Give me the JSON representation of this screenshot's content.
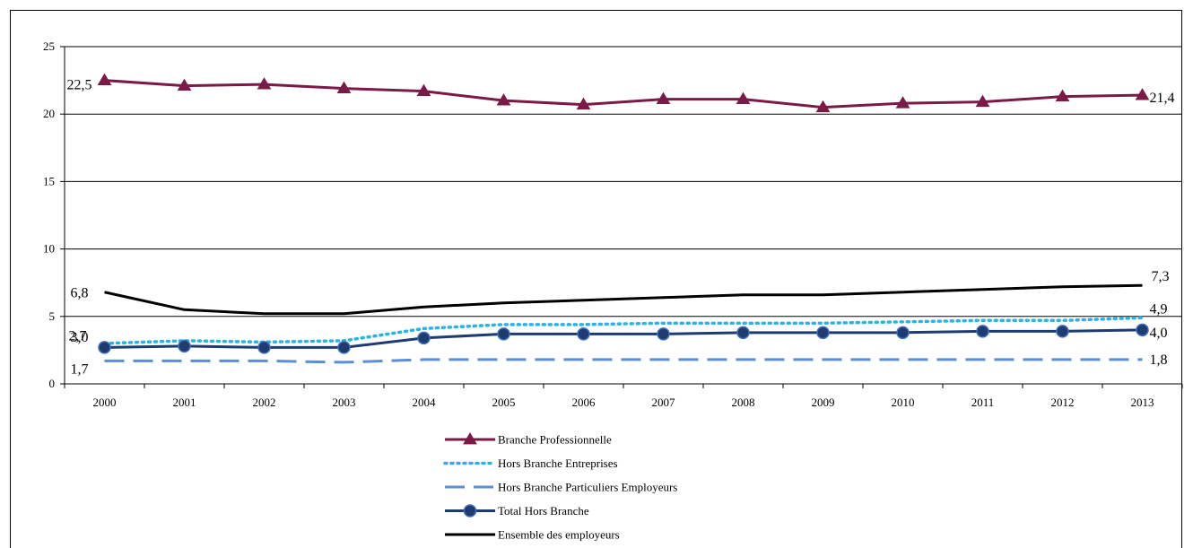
{
  "chart_data": {
    "type": "line",
    "x": [
      2000,
      2001,
      2002,
      2003,
      2004,
      2005,
      2006,
      2007,
      2008,
      2009,
      2010,
      2011,
      2012,
      2013
    ],
    "ylim": [
      0,
      25
    ],
    "yticks": [
      0,
      5,
      10,
      15,
      20,
      25
    ],
    "grid": true,
    "legend_position": "bottom",
    "series": [
      {
        "name": "Branche Professionnelle",
        "color": "#7b1a47",
        "style": "solid",
        "marker": "triangle",
        "values": [
          22.5,
          22.1,
          22.2,
          21.9,
          21.7,
          21.0,
          20.7,
          21.1,
          21.1,
          20.5,
          20.8,
          20.9,
          21.3,
          21.4
        ],
        "labels": {
          "start": "22,5",
          "end": "21,4"
        }
      },
      {
        "name": "Hors Branche Entreprises",
        "color": "#2ab4e6",
        "style": "dotted",
        "marker": "none",
        "values": [
          3.0,
          3.2,
          3.1,
          3.2,
          4.1,
          4.4,
          4.4,
          4.5,
          4.5,
          4.5,
          4.6,
          4.7,
          4.7,
          4.9
        ],
        "labels": {
          "start": "3,0",
          "end": "4,9"
        }
      },
      {
        "name": "Hors Branche Particuliers Employeurs",
        "color": "#5b8ed6",
        "style": "dashed",
        "marker": "none",
        "values": [
          1.7,
          1.7,
          1.7,
          1.6,
          1.8,
          1.8,
          1.8,
          1.8,
          1.8,
          1.8,
          1.8,
          1.8,
          1.8,
          1.8
        ],
        "labels": {
          "start": "1,7",
          "end": "1,8"
        }
      },
      {
        "name": "Total Hors Branche",
        "color": "#1f3b70",
        "style": "solid",
        "marker": "circle",
        "values": [
          2.7,
          2.8,
          2.7,
          2.7,
          3.4,
          3.7,
          3.7,
          3.7,
          3.8,
          3.8,
          3.8,
          3.9,
          3.9,
          4.0
        ],
        "labels": {
          "start": "2,7",
          "end": "4,0"
        }
      },
      {
        "name": "Ensemble des employeurs",
        "color": "#000000",
        "style": "solid",
        "marker": "none",
        "values": [
          6.8,
          5.5,
          5.2,
          5.2,
          5.7,
          6.0,
          6.2,
          6.4,
          6.6,
          6.6,
          6.8,
          7.0,
          7.2,
          7.3
        ],
        "labels": {
          "start": "6,8",
          "end": "7,3"
        }
      }
    ]
  }
}
